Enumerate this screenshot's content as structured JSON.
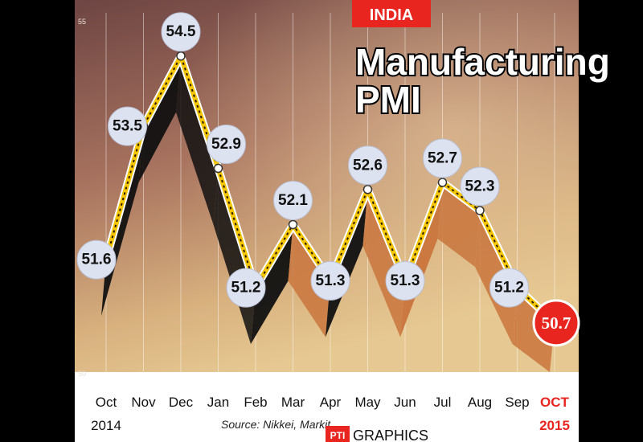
{
  "badge": "INDIA",
  "title_line1": "Manufacturing",
  "title_line2": "PMI",
  "source": "Source: Nikkei, Markit",
  "credit_logo": "PTI",
  "credit": "GRAPHICS",
  "colors": {
    "background_top": "#7a4b47",
    "background_bottom": "#e3c28e",
    "line": "#f6c600",
    "label_circle": "#dde2f0",
    "highlight": "#e8251f",
    "ribbon_dark": "#111111",
    "ribbon_orange": "#c9753d"
  },
  "chart_data": {
    "type": "line",
    "x": [
      "Oct",
      "Nov",
      "Dec",
      "Jan",
      "Feb",
      "Mar",
      "Apr",
      "May",
      "Jun",
      "Jul",
      "Aug",
      "Sep",
      "OCT"
    ],
    "year_labels": [
      "2014",
      "2015"
    ],
    "values": [
      51.6,
      53.5,
      54.5,
      52.9,
      51.2,
      52.1,
      51.3,
      52.6,
      51.3,
      52.7,
      52.3,
      51.2,
      50.7
    ],
    "data_labels": [
      "51.6",
      "53.5",
      "54.5",
      "52.9",
      "51.2",
      "52.1",
      "51.3",
      "52.6",
      "51.3",
      "52.7",
      "52.3",
      "51.2",
      "50.7"
    ],
    "y_ticks": [
      "50",
      "55"
    ],
    "ylim": [
      50,
      55
    ],
    "highlight_index": 12,
    "grid": true,
    "legend": "none"
  }
}
